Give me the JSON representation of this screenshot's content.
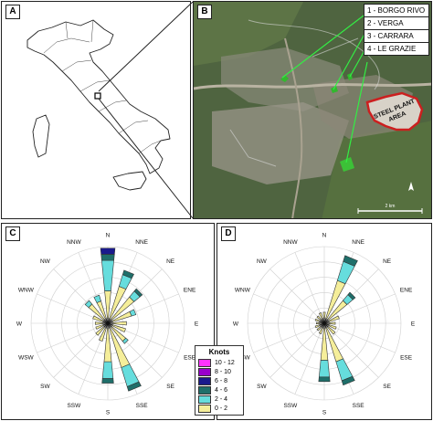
{
  "panels": {
    "a": "A",
    "b": "B",
    "c": "C",
    "d": "D"
  },
  "sites": [
    "1 - BORGO RIVO",
    "2 - VERGA",
    "3 - CARRARA",
    "4 - LE GRAZIE"
  ],
  "map_labels": {
    "steel_plant": "STEEL PLANT",
    "area": "AREA",
    "scale": "2 km"
  },
  "directions": [
    "N",
    "NNE",
    "NE",
    "ENE",
    "E",
    "ESE",
    "SE",
    "SSE",
    "S",
    "SSW",
    "SW",
    "WSW",
    "W",
    "WNW",
    "NW",
    "NNW"
  ],
  "knots_legend": {
    "title": "Knots",
    "bins": [
      {
        "label": "10 - 12",
        "color": "#ff33ff"
      },
      {
        "label": "8 - 10",
        "color": "#9900cc"
      },
      {
        "label": "6 - 8",
        "color": "#1a1a8c"
      },
      {
        "label": "4 - 6",
        "color": "#1f6f6a"
      },
      {
        "label": "2 - 4",
        "color": "#66dddd"
      },
      {
        "label": "0 - 2",
        "color": "#f5ee9a"
      }
    ]
  },
  "chart_data": [
    {
      "type": "wind_rose",
      "panel": "C",
      "directions": [
        "N",
        "NNE",
        "NE",
        "ENE",
        "E",
        "ESE",
        "SE",
        "SSE",
        "S",
        "SSW",
        "SW",
        "WSW",
        "W",
        "WNW",
        "NW",
        "NNW"
      ],
      "bins": [
        "0 - 2",
        "2 - 4",
        "4 - 6",
        "6 - 8",
        "8 - 10",
        "10 - 12"
      ],
      "frequency_by_direction": [
        [
          0.4,
          0.4,
          0.08,
          0.08,
          0,
          0
        ],
        [
          0.48,
          0.16,
          0.06,
          0,
          0,
          0
        ],
        [
          0.42,
          0.1,
          0.04,
          0,
          0,
          0
        ],
        [
          0.3,
          0.06,
          0,
          0,
          0,
          0
        ],
        [
          0.22,
          0,
          0,
          0,
          0,
          0
        ],
        [
          0.22,
          0,
          0,
          0,
          0,
          0
        ],
        [
          0.28,
          0.04,
          0,
          0,
          0,
          0
        ],
        [
          0.58,
          0.26,
          0.06,
          0,
          0,
          0
        ],
        [
          0.48,
          0.22,
          0.06,
          0,
          0,
          0
        ],
        [
          0.22,
          0,
          0,
          0,
          0,
          0
        ],
        [
          0.18,
          0,
          0,
          0,
          0,
          0
        ],
        [
          0.14,
          0,
          0,
          0,
          0,
          0
        ],
        [
          0.14,
          0,
          0,
          0,
          0,
          0
        ],
        [
          0.18,
          0,
          0,
          0,
          0,
          0
        ],
        [
          0.3,
          0.06,
          0,
          0,
          0,
          0
        ],
        [
          0.28,
          0.08,
          0,
          0,
          0,
          0
        ]
      ]
    },
    {
      "type": "wind_rose",
      "panel": "D",
      "directions": [
        "N",
        "NNE",
        "NE",
        "ENE",
        "E",
        "ESE",
        "SE",
        "SSE",
        "S",
        "SSW",
        "SW",
        "WSW",
        "W",
        "WNW",
        "NW",
        "NNW"
      ],
      "bins": [
        "0 - 2",
        "2 - 4",
        "4 - 6",
        "6 - 8",
        "8 - 10",
        "10 - 12"
      ],
      "frequency_by_direction": [
        [
          0.12,
          0,
          0,
          0,
          0,
          0
        ],
        [
          0.56,
          0.26,
          0.08,
          0,
          0,
          0
        ],
        [
          0.36,
          0.1,
          0.04,
          0,
          0,
          0
        ],
        [
          0.18,
          0,
          0,
          0,
          0,
          0
        ],
        [
          0.12,
          0,
          0,
          0,
          0,
          0
        ],
        [
          0.14,
          0,
          0,
          0,
          0,
          0
        ],
        [
          0.16,
          0,
          0,
          0,
          0,
          0
        ],
        [
          0.5,
          0.26,
          0.06,
          0,
          0,
          0
        ],
        [
          0.46,
          0.22,
          0.06,
          0,
          0,
          0
        ],
        [
          0.12,
          0,
          0,
          0,
          0,
          0
        ],
        [
          0.1,
          0,
          0,
          0,
          0,
          0
        ],
        [
          0.1,
          0,
          0,
          0,
          0,
          0
        ],
        [
          0.08,
          0,
          0,
          0,
          0,
          0
        ],
        [
          0.1,
          0,
          0,
          0,
          0,
          0
        ],
        [
          0.1,
          0,
          0,
          0,
          0,
          0
        ],
        [
          0.12,
          0,
          0,
          0,
          0,
          0
        ]
      ]
    }
  ]
}
